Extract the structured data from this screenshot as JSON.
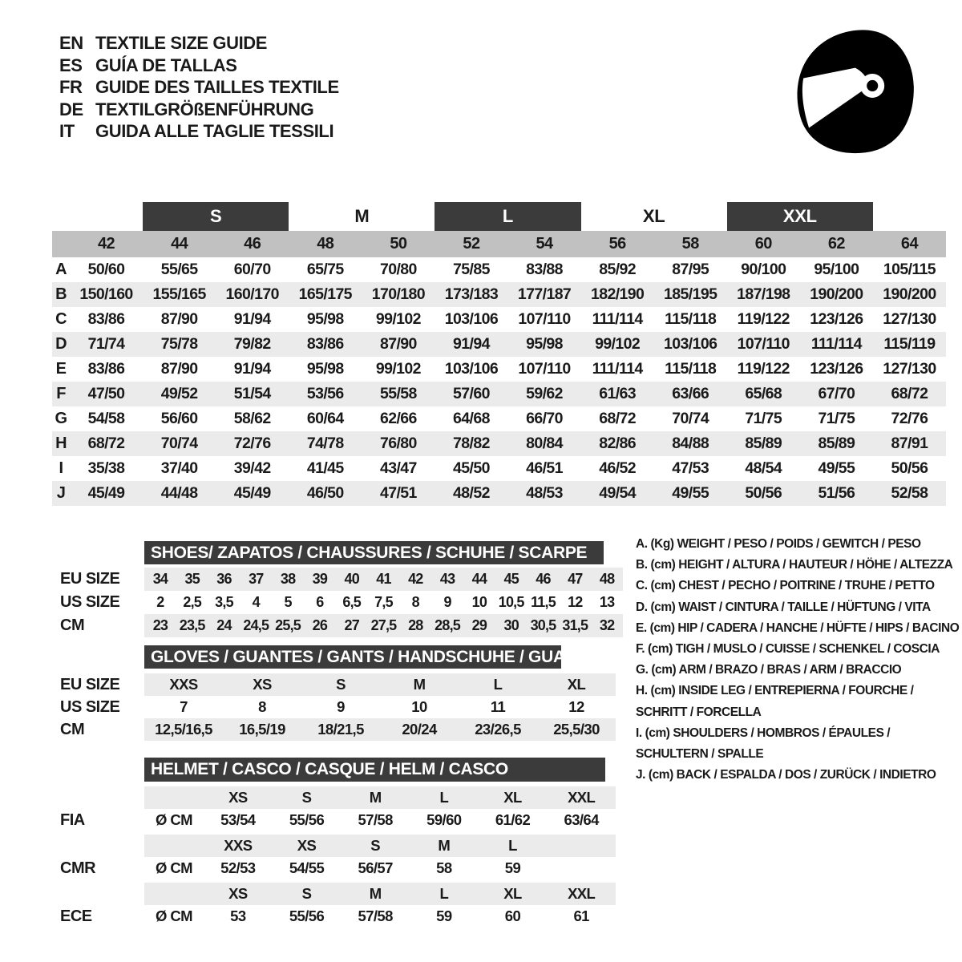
{
  "header": {
    "languages": [
      {
        "code": "EN",
        "title": "TEXTILE SIZE GUIDE"
      },
      {
        "code": "ES",
        "title": "GUÍA DE TALLAS"
      },
      {
        "code": "FR",
        "title": "GUIDE DES TAILLES TEXTILE"
      },
      {
        "code": "DE",
        "title": "TEXTILGRÖßENFÜHRUNG"
      },
      {
        "code": "IT",
        "title": "GUIDA ALLE TAGLIE TESSILI"
      }
    ],
    "helmet_icon": "full-face-helmet-icon"
  },
  "colors": {
    "dark_bar": "#3b3b3b",
    "header_gray": "#c1c1c1",
    "stripe_gray": "#ebebeb",
    "text": "#1a1a1a"
  },
  "main_table": {
    "groups": [
      {
        "label": "S",
        "bar": true
      },
      {
        "label": "M",
        "bar": false
      },
      {
        "label": "L",
        "bar": true
      },
      {
        "label": "XL",
        "bar": false
      },
      {
        "label": "XXL",
        "bar": true
      }
    ],
    "sizes": [
      "42",
      "44",
      "46",
      "48",
      "50",
      "52",
      "54",
      "56",
      "58",
      "60",
      "62",
      "64"
    ],
    "rows": [
      {
        "label": "A",
        "values": [
          "50/60",
          "55/65",
          "60/70",
          "65/75",
          "70/80",
          "75/85",
          "83/88",
          "85/92",
          "87/95",
          "90/100",
          "95/100",
          "105/115"
        ]
      },
      {
        "label": "B",
        "values": [
          "150/160",
          "155/165",
          "160/170",
          "165/175",
          "170/180",
          "173/183",
          "177/187",
          "182/190",
          "185/195",
          "187/198",
          "190/200",
          "190/200"
        ]
      },
      {
        "label": "C",
        "values": [
          "83/86",
          "87/90",
          "91/94",
          "95/98",
          "99/102",
          "103/106",
          "107/110",
          "111/114",
          "115/118",
          "119/122",
          "123/126",
          "127/130"
        ]
      },
      {
        "label": "D",
        "values": [
          "71/74",
          "75/78",
          "79/82",
          "83/86",
          "87/90",
          "91/94",
          "95/98",
          "99/102",
          "103/106",
          "107/110",
          "111/114",
          "115/119"
        ]
      },
      {
        "label": "E",
        "values": [
          "83/86",
          "87/90",
          "91/94",
          "95/98",
          "99/102",
          "103/106",
          "107/110",
          "111/114",
          "115/118",
          "119/122",
          "123/126",
          "127/130"
        ]
      },
      {
        "label": "F",
        "values": [
          "47/50",
          "49/52",
          "51/54",
          "53/56",
          "55/58",
          "57/60",
          "59/62",
          "61/63",
          "63/66",
          "65/68",
          "67/70",
          "68/72"
        ]
      },
      {
        "label": "G",
        "values": [
          "54/58",
          "56/60",
          "58/62",
          "60/64",
          "62/66",
          "64/68",
          "66/70",
          "68/72",
          "70/74",
          "71/75",
          "71/75",
          "72/76"
        ]
      },
      {
        "label": "H",
        "values": [
          "68/72",
          "70/74",
          "72/76",
          "74/78",
          "76/80",
          "78/82",
          "80/84",
          "82/86",
          "84/88",
          "85/89",
          "85/89",
          "87/91"
        ]
      },
      {
        "label": "I",
        "values": [
          "35/38",
          "37/40",
          "39/42",
          "41/45",
          "43/47",
          "45/50",
          "46/51",
          "46/52",
          "47/53",
          "48/54",
          "49/55",
          "50/56"
        ]
      },
      {
        "label": "J",
        "values": [
          "45/49",
          "44/48",
          "45/49",
          "46/50",
          "47/51",
          "48/52",
          "48/53",
          "49/54",
          "49/55",
          "50/56",
          "51/56",
          "52/58"
        ]
      }
    ]
  },
  "shoes": {
    "title": "SHOES/ ZAPATOS / CHAUSSURES / SCHUHE / SCARPE",
    "row_labels": [
      "EU SIZE",
      "US SIZE",
      "CM"
    ],
    "eu": [
      "34",
      "35",
      "36",
      "37",
      "38",
      "39",
      "40",
      "41",
      "42",
      "43",
      "44",
      "45",
      "46",
      "47",
      "48"
    ],
    "us": [
      "2",
      "2,5",
      "3,5",
      "4",
      "5",
      "6",
      "6,5",
      "7,5",
      "8",
      "9",
      "10",
      "10,5",
      "11,5",
      "12",
      "13"
    ],
    "cm": [
      "23",
      "23,5",
      "24",
      "24,5",
      "25,5",
      "26",
      "27",
      "27,5",
      "28",
      "28,5",
      "29",
      "30",
      "30,5",
      "31,5",
      "32"
    ]
  },
  "gloves": {
    "title": "GLOVES / GUANTES / GANTS / HANDSCHUHE / GUANTI",
    "row_labels": [
      "EU SIZE",
      "US SIZE",
      "CM"
    ],
    "eu": [
      "XXS",
      "XS",
      "S",
      "M",
      "L",
      "XL"
    ],
    "us": [
      "7",
      "8",
      "9",
      "10",
      "11",
      "12"
    ],
    "cm": [
      "12,5/16,5",
      "16,5/19",
      "18/21,5",
      "20/24",
      "23/26,5",
      "25,5/30"
    ]
  },
  "helmet": {
    "title": "HELMET / CASCO / CASQUE / HELM / CASCO",
    "diameter_label": "Ø CM",
    "standards": [
      {
        "name": "FIA",
        "sizes": [
          "XS",
          "S",
          "M",
          "L",
          "XL",
          "XXL"
        ],
        "values": [
          "53/54",
          "55/56",
          "57/58",
          "59/60",
          "61/62",
          "63/64"
        ]
      },
      {
        "name": "CMR",
        "sizes": [
          "XXS",
          "XS",
          "S",
          "M",
          "L",
          ""
        ],
        "values": [
          "52/53",
          "54/55",
          "56/57",
          "58",
          "59",
          ""
        ]
      },
      {
        "name": "ECE",
        "sizes": [
          "XS",
          "S",
          "M",
          "L",
          "XL",
          "XXL"
        ],
        "values": [
          "53",
          "55/56",
          "57/58",
          "59",
          "60",
          "61"
        ]
      }
    ]
  },
  "legend": {
    "items": [
      "A. (Kg) WEIGHT / PESO / POIDS / GEWITCH / PESO",
      "B. (cm) HEIGHT / ALTURA / HAUTEUR / HÖHE / ALTEZZA",
      "C. (cm) CHEST / PECHO / POITRINE / TRUHE / PETTO",
      "D. (cm) WAIST / CINTURA / TAILLE / HÜFTUNG / VITA",
      "E. (cm) HIP / CADERA / HANCHE / HÜFTE / HIPS / BACINO",
      "F. (cm) TIGH / MUSLO / CUISSE / SCHENKEL / COSCIA",
      "G. (cm) ARM / BRAZO / BRAS / ARM / BRACCIO",
      "H. (cm) INSIDE LEG / ENTREPIERNA / FOURCHE /",
      "SCHRITT / FORCELLA",
      "I. (cm) SHOULDERS / HOMBROS / ÉPAULES /",
      "SCHULTERN / SPALLE",
      "J. (cm) BACK / ESPALDA / DOS / ZURÜCK / INDIETRO"
    ]
  }
}
